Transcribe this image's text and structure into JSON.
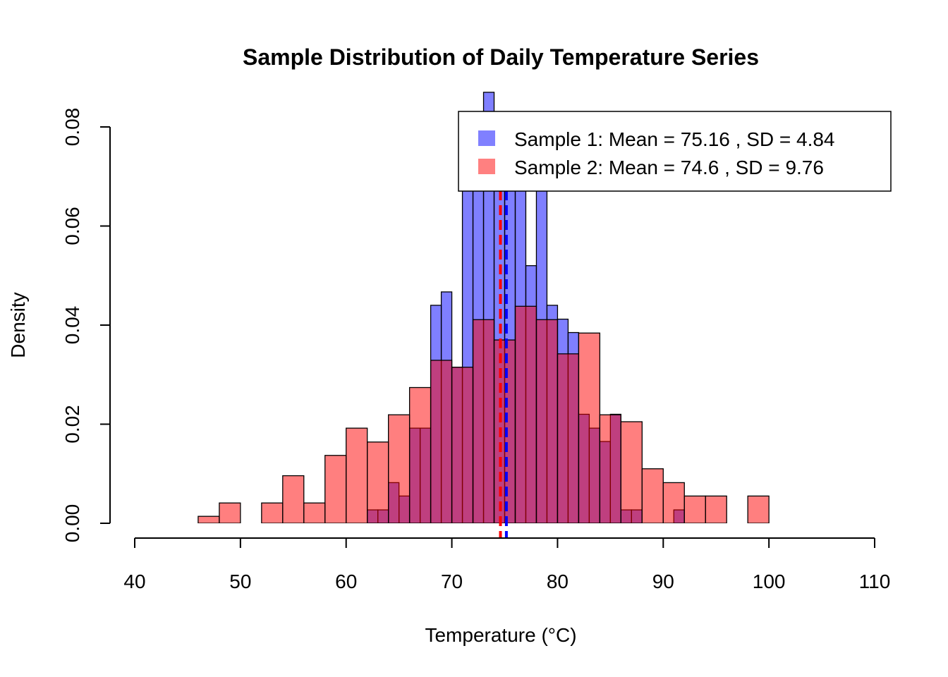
{
  "chart_data": {
    "type": "histogram",
    "title": "Sample Distribution of Daily Temperature Series",
    "xlabel": "Temperature (°C)",
    "ylabel": "Density",
    "xlim": [
      40,
      110
    ],
    "ylim": [
      0,
      0.08
    ],
    "x_ticks": [
      "40",
      "50",
      "60",
      "70",
      "80",
      "90",
      "100",
      "110"
    ],
    "y_ticks": [
      "0.00",
      "0.02",
      "0.04",
      "0.06",
      "0.08"
    ],
    "grid": false,
    "legend_position": "top-right",
    "legend": [
      {
        "label": "Sample 1: Mean = 75.16 , SD = 4.84",
        "color": "#8080ff"
      },
      {
        "label": "Sample 2: Mean = 74.6 , SD = 9.76",
        "color": "#ff8080"
      }
    ],
    "series": [
      {
        "color": "#0000ff",
        "fill_color": "#8080ff",
        "bin_width": 1,
        "bins": [
          {
            "x0": 62,
            "x1": 63,
            "density": 0.0027
          },
          {
            "x0": 63,
            "x1": 64,
            "density": 0.0027
          },
          {
            "x0": 64,
            "x1": 65,
            "density": 0.0082
          },
          {
            "x0": 65,
            "x1": 66,
            "density": 0.0055
          },
          {
            "x0": 66,
            "x1": 67,
            "density": 0.0192
          },
          {
            "x0": 67,
            "x1": 68,
            "density": 0.0192
          },
          {
            "x0": 68,
            "x1": 69,
            "density": 0.044
          },
          {
            "x0": 69,
            "x1": 70,
            "density": 0.0467
          },
          {
            "x0": 70,
            "x1": 71,
            "density": 0.0315
          },
          {
            "x0": 71,
            "x1": 72,
            "density": 0.0715
          },
          {
            "x0": 72,
            "x1": 73,
            "density": 0.0755
          },
          {
            "x0": 73,
            "x1": 74,
            "density": 0.087
          },
          {
            "x0": 74,
            "x1": 75,
            "density": 0.0795
          },
          {
            "x0": 75,
            "x1": 76,
            "density": 0.0795
          },
          {
            "x0": 76,
            "x1": 77,
            "density": 0.0685
          },
          {
            "x0": 77,
            "x1": 78,
            "density": 0.052
          },
          {
            "x0": 78,
            "x1": 79,
            "density": 0.0715
          },
          {
            "x0": 79,
            "x1": 80,
            "density": 0.044
          },
          {
            "x0": 80,
            "x1": 81,
            "density": 0.0412
          },
          {
            "x0": 81,
            "x1": 82,
            "density": 0.0385
          },
          {
            "x0": 82,
            "x1": 83,
            "density": 0.022
          },
          {
            "x0": 83,
            "x1": 84,
            "density": 0.0192
          },
          {
            "x0": 84,
            "x1": 85,
            "density": 0.0165
          },
          {
            "x0": 85,
            "x1": 86,
            "density": 0.022
          },
          {
            "x0": 86,
            "x1": 87,
            "density": 0.0027
          },
          {
            "x0": 87,
            "x1": 88,
            "density": 0.0027
          },
          {
            "x0": 91,
            "x1": 92,
            "density": 0.0027
          }
        ],
        "mean": 75.16
      },
      {
        "color": "#ff0000",
        "fill_color": "#ff8080",
        "bin_width": 2,
        "bins": [
          {
            "x0": 46,
            "x1": 48,
            "density": 0.0014
          },
          {
            "x0": 48,
            "x1": 50,
            "density": 0.0041
          },
          {
            "x0": 52,
            "x1": 54,
            "density": 0.0041
          },
          {
            "x0": 54,
            "x1": 56,
            "density": 0.0096
          },
          {
            "x0": 56,
            "x1": 58,
            "density": 0.0041
          },
          {
            "x0": 58,
            "x1": 60,
            "density": 0.0137
          },
          {
            "x0": 60,
            "x1": 62,
            "density": 0.0192
          },
          {
            "x0": 62,
            "x1": 64,
            "density": 0.0164
          },
          {
            "x0": 64,
            "x1": 66,
            "density": 0.0219
          },
          {
            "x0": 66,
            "x1": 68,
            "density": 0.0274
          },
          {
            "x0": 68,
            "x1": 70,
            "density": 0.0329
          },
          {
            "x0": 70,
            "x1": 72,
            "density": 0.0315
          },
          {
            "x0": 72,
            "x1": 74,
            "density": 0.0411
          },
          {
            "x0": 74,
            "x1": 76,
            "density": 0.037
          },
          {
            "x0": 76,
            "x1": 78,
            "density": 0.0438
          },
          {
            "x0": 78,
            "x1": 80,
            "density": 0.0411
          },
          {
            "x0": 80,
            "x1": 82,
            "density": 0.0342
          },
          {
            "x0": 82,
            "x1": 84,
            "density": 0.0384
          },
          {
            "x0": 84,
            "x1": 86,
            "density": 0.0219
          },
          {
            "x0": 86,
            "x1": 88,
            "density": 0.0205
          },
          {
            "x0": 88,
            "x1": 90,
            "density": 0.011
          },
          {
            "x0": 90,
            "x1": 92,
            "density": 0.0082
          },
          {
            "x0": 92,
            "x1": 94,
            "density": 0.0055
          },
          {
            "x0": 94,
            "x1": 96,
            "density": 0.0055
          },
          {
            "x0": 98,
            "x1": 100,
            "density": 0.0055
          }
        ],
        "mean": 74.6
      }
    ]
  }
}
